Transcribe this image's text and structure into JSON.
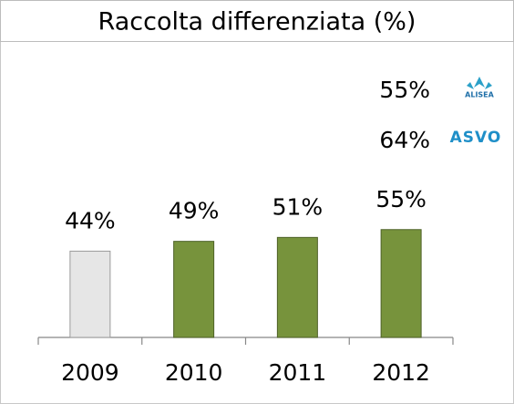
{
  "chart_data": {
    "type": "bar",
    "title": "Raccolta differenziata (%)",
    "categories": [
      "2009",
      "2010",
      "2011",
      "2012"
    ],
    "values": [
      44,
      49,
      51,
      55
    ],
    "value_labels": [
      "44%",
      "49%",
      "51%",
      "55%"
    ],
    "colors": [
      "#e6e6e6",
      "#77933c",
      "#77933c",
      "#77933c"
    ],
    "annotations": [
      {
        "text": "55%",
        "logo": "ALISEA"
      },
      {
        "text": "64%",
        "logo": "ASVO"
      }
    ]
  }
}
